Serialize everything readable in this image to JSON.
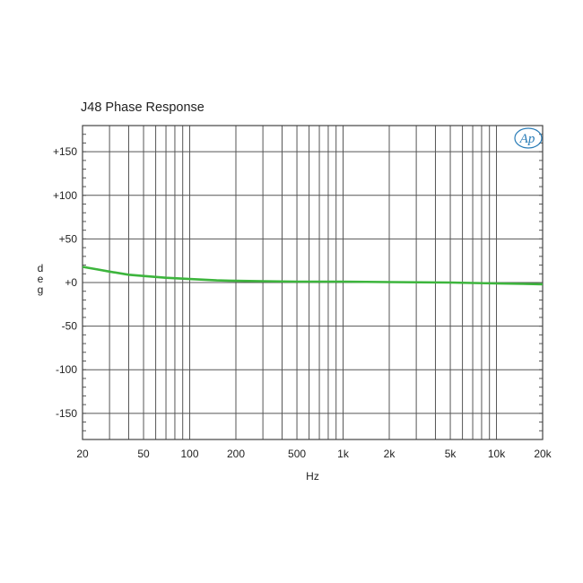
{
  "chart_data": {
    "type": "line",
    "title": "J48 Phase Response",
    "xlabel": "Hz",
    "ylabel": "deg",
    "x_scale": "log",
    "xlim": [
      20,
      20000
    ],
    "ylim": [
      -180,
      180
    ],
    "grid": true,
    "x_ticks": [
      {
        "value": 20,
        "label": "20"
      },
      {
        "value": 50,
        "label": "50"
      },
      {
        "value": 100,
        "label": "100"
      },
      {
        "value": 200,
        "label": "200"
      },
      {
        "value": 500,
        "label": "500"
      },
      {
        "value": 1000,
        "label": "1k"
      },
      {
        "value": 2000,
        "label": "2k"
      },
      {
        "value": 5000,
        "label": "5k"
      },
      {
        "value": 10000,
        "label": "10k"
      },
      {
        "value": 20000,
        "label": "20k"
      }
    ],
    "y_ticks": [
      {
        "value": 150,
        "label": "+150"
      },
      {
        "value": 100,
        "label": "+100"
      },
      {
        "value": 50,
        "label": "+50"
      },
      {
        "value": 0,
        "label": "+0"
      },
      {
        "value": -50,
        "label": "-50"
      },
      {
        "value": -100,
        "label": "-100"
      },
      {
        "value": -150,
        "label": "-150"
      }
    ],
    "series": [
      {
        "color": "#3db53d",
        "x": [
          20,
          25,
          30,
          40,
          50,
          70,
          100,
          150,
          200,
          300,
          500,
          1000,
          2000,
          5000,
          10000,
          15000,
          20000
        ],
        "y": [
          18,
          15,
          12.5,
          9,
          7.5,
          5.5,
          4,
          2.5,
          2,
          1.5,
          1,
          1,
          0.5,
          0,
          -1,
          -1.5,
          -2
        ]
      }
    ]
  },
  "logo": {
    "text": "Ap",
    "color": "#2a7db8"
  }
}
